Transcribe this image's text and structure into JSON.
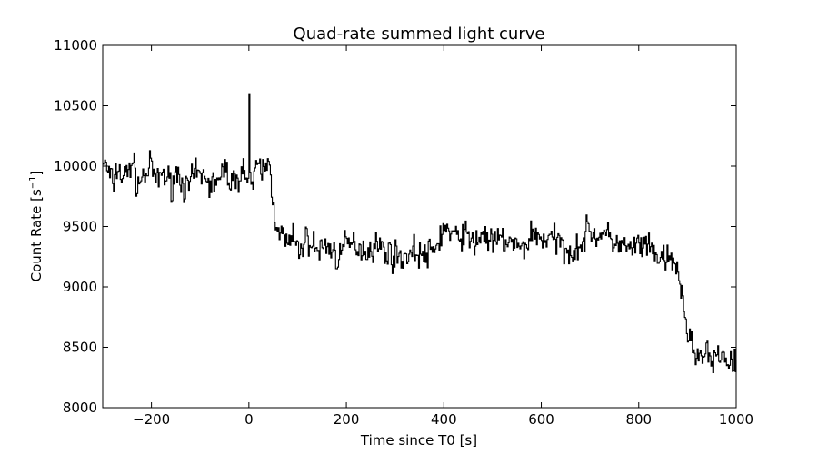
{
  "chart_data": {
    "type": "line",
    "title": "Quad-rate summed light curve",
    "xlabel": "Time since T0 [s]",
    "ylabel_main": "Count Rate [s",
    "ylabel_sup": "−1",
    "ylabel_end": "]",
    "xlim": [
      -300,
      1000
    ],
    "ylim": [
      8000,
      11000
    ],
    "xticks": [
      -200,
      0,
      200,
      400,
      600,
      800,
      1000
    ],
    "xtick_labels": [
      "−200",
      "0",
      "200",
      "400",
      "600",
      "800",
      "1000"
    ],
    "yticks": [
      8000,
      8500,
      9000,
      9500,
      10000,
      10500,
      11000
    ],
    "ytick_labels": [
      "8000",
      "8500",
      "9000",
      "9500",
      "10000",
      "10500",
      "11000"
    ],
    "grid": false,
    "line_color": "#000000",
    "series": [
      {
        "x": [
          -300,
          -290,
          -280,
          -270,
          -260,
          -250,
          -240,
          -230,
          -220,
          -210,
          -200,
          -190,
          -180,
          -170,
          -160,
          -150,
          -140,
          -130,
          -120,
          -110,
          -100,
          -90,
          -80,
          -70,
          -60,
          -50,
          -40,
          -30,
          -20,
          -10,
          -5,
          -2,
          0,
          2,
          5,
          10,
          20,
          30,
          40,
          45,
          50,
          55,
          60,
          70,
          80,
          90,
          100,
          120,
          140,
          160,
          180,
          200,
          220,
          240,
          260,
          280,
          300,
          320,
          340,
          360,
          380,
          390,
          400,
          420,
          440,
          460,
          480,
          490,
          500,
          520,
          540,
          560,
          580,
          600,
          620,
          640,
          660,
          680,
          700,
          710,
          720,
          740,
          760,
          780,
          800,
          820,
          840,
          860,
          870,
          880,
          885,
          890,
          895,
          900,
          905,
          910,
          920,
          930,
          940,
          950,
          960,
          970,
          980,
          990,
          1000
        ],
        "y": [
          10050,
          9950,
          9850,
          10000,
          9900,
          9950,
          10050,
          9850,
          9900,
          9950,
          10000,
          9850,
          9950,
          9900,
          9850,
          9950,
          9900,
          9800,
          9850,
          9950,
          9900,
          9950,
          9800,
          9900,
          9850,
          10000,
          9900,
          9850,
          9950,
          10000,
          9850,
          9900,
          10600,
          9950,
          9800,
          9900,
          10000,
          9950,
          10050,
          9850,
          9650,
          9550,
          9500,
          9400,
          9350,
          9400,
          9300,
          9400,
          9300,
          9350,
          9250,
          9350,
          9350,
          9300,
          9350,
          9300,
          9250,
          9250,
          9300,
          9250,
          9300,
          9400,
          9500,
          9400,
          9450,
          9350,
          9450,
          9400,
          9350,
          9400,
          9350,
          9300,
          9450,
          9400,
          9400,
          9350,
          9300,
          9350,
          9500,
          9400,
          9450,
          9400,
          9350,
          9300,
          9350,
          9300,
          9250,
          9200,
          9200,
          9150,
          9000,
          8850,
          8700,
          8650,
          8550,
          8500,
          8450,
          8400,
          8450,
          8350,
          8400,
          8450,
          8400,
          8350,
          8400
        ]
      }
    ]
  }
}
